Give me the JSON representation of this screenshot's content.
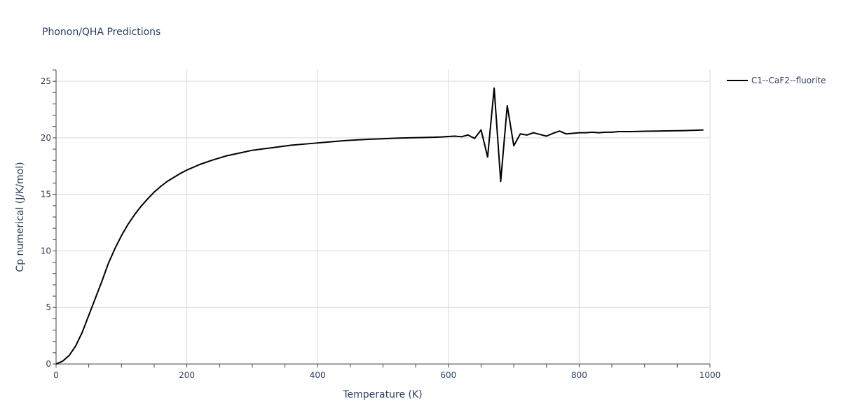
{
  "chart_data": {
    "type": "line",
    "title": "Phonon/QHA Predictions",
    "xlabel": "Temperature (K)",
    "ylabel": "Cp numerical (J/K/mol)",
    "xlim": [
      0,
      1000
    ],
    "ylim": [
      0,
      26
    ],
    "xticks": [
      0,
      200,
      400,
      600,
      800,
      1000
    ],
    "yticks": [
      0,
      5,
      10,
      15,
      20,
      25
    ],
    "grid": true,
    "legend_position": "top-right",
    "series": [
      {
        "name": "C1--CaF2--fluorite",
        "color": "#000000",
        "x": [
          0,
          10,
          20,
          30,
          40,
          50,
          60,
          70,
          80,
          90,
          100,
          110,
          120,
          130,
          140,
          150,
          160,
          170,
          180,
          190,
          200,
          220,
          240,
          260,
          280,
          300,
          320,
          340,
          360,
          380,
          400,
          420,
          440,
          460,
          480,
          500,
          520,
          540,
          560,
          580,
          590,
          600,
          610,
          620,
          630,
          640,
          650,
          660,
          670,
          680,
          690,
          700,
          710,
          720,
          730,
          740,
          750,
          760,
          770,
          780,
          790,
          800,
          810,
          820,
          830,
          840,
          850,
          860,
          870,
          880,
          900,
          920,
          940,
          960,
          980,
          990
        ],
        "y": [
          0.0,
          0.25,
          0.75,
          1.6,
          2.8,
          4.3,
          5.8,
          7.3,
          8.9,
          10.2,
          11.35,
          12.35,
          13.2,
          13.95,
          14.6,
          15.2,
          15.7,
          16.15,
          16.5,
          16.85,
          17.15,
          17.65,
          18.05,
          18.4,
          18.65,
          18.9,
          19.05,
          19.2,
          19.35,
          19.45,
          19.55,
          19.65,
          19.75,
          19.82,
          19.88,
          19.92,
          19.97,
          20.0,
          20.03,
          20.06,
          20.08,
          20.12,
          20.15,
          20.1,
          20.25,
          19.95,
          20.7,
          18.3,
          24.4,
          16.15,
          22.85,
          19.3,
          20.35,
          20.25,
          20.45,
          20.3,
          20.15,
          20.4,
          20.6,
          20.35,
          20.4,
          20.45,
          20.45,
          20.5,
          20.45,
          20.5,
          20.5,
          20.55,
          20.55,
          20.55,
          20.58,
          20.6,
          20.62,
          20.64,
          20.68,
          20.7
        ]
      }
    ]
  }
}
